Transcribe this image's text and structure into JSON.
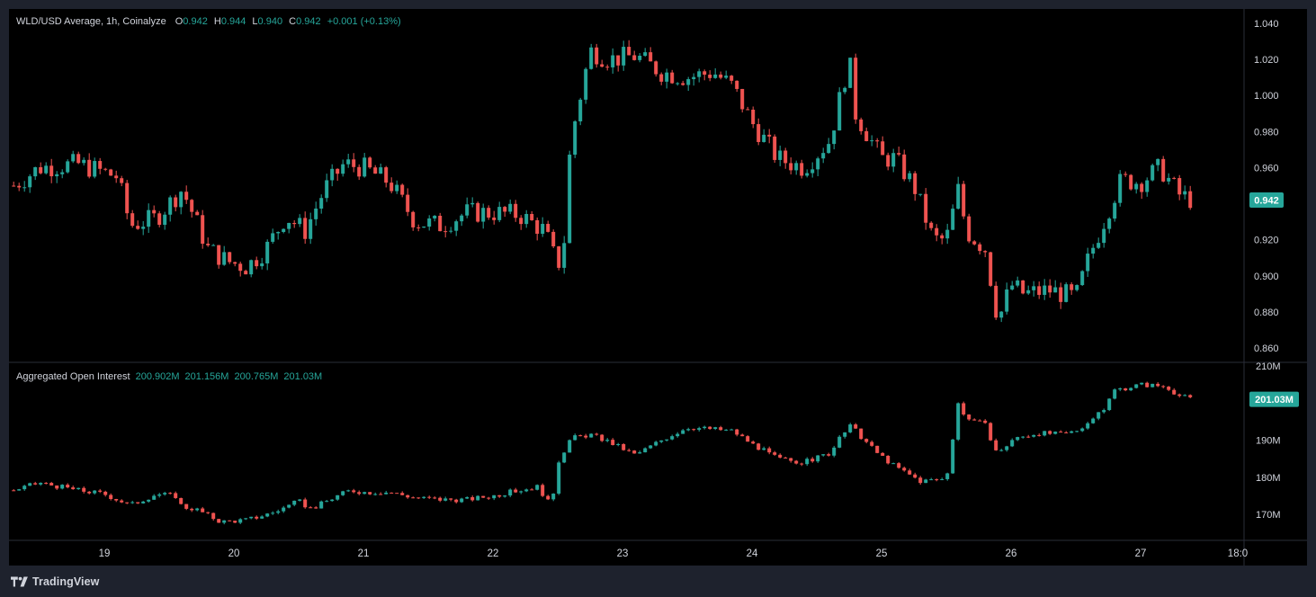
{
  "legend_main": {
    "symbol": "WLD/USD Average, 1h, Coinalyze",
    "o_label": "O",
    "o": "0.942",
    "h_label": "H",
    "h": "0.944",
    "l_label": "L",
    "l": "0.940",
    "c_label": "C",
    "c": "0.942",
    "change": "+0.001 (+0.13%)"
  },
  "legend_oi": {
    "title": "Aggregated Open Interest",
    "o": "200.902M",
    "h": "201.156M",
    "l": "200.765M",
    "c": "201.03M"
  },
  "footer": {
    "brand": "TradingView"
  },
  "colors": {
    "up": "#26a69a",
    "down": "#ef5350",
    "background": "#000000",
    "frame": "#1e222d",
    "text": "#d1d4dc",
    "grid_divider": "#2a2e39"
  },
  "chart_data": [
    {
      "type": "candlestick",
      "title": "WLD/USD Average, 1h, Coinalyze",
      "x_ticks": [
        "19",
        "20",
        "21",
        "22",
        "23",
        "24",
        "25",
        "26",
        "27",
        "18:0"
      ],
      "y_ticks": [
        "1.040",
        "1.020",
        "1.000",
        "0.980",
        "0.960",
        "0.940",
        "0.920",
        "0.900",
        "0.880",
        "0.860"
      ],
      "ylim": [
        0.852,
        1.048
      ],
      "last_price_label": "0.942",
      "close_path": {
        "x_days": [
          18.3,
          18.5,
          18.8,
          19.1,
          19.2,
          19.4,
          19.6,
          19.65,
          19.8,
          19.95,
          20.1,
          20.25,
          20.4,
          20.55,
          20.7,
          20.85,
          21.0,
          21.2,
          21.4,
          21.6,
          21.8,
          22.0,
          22.2,
          22.4,
          22.5,
          22.55,
          22.6,
          22.75,
          22.9,
          23.1,
          23.3,
          23.5,
          23.7,
          23.85,
          24.0,
          24.2,
          24.4,
          24.6,
          24.75,
          24.8,
          25.0,
          25.1,
          25.25,
          25.4,
          25.5,
          25.6,
          25.65,
          25.8,
          25.9,
          26.0,
          26.1,
          26.3,
          26.5,
          26.6,
          26.8,
          26.85,
          27.0,
          27.15,
          27.3,
          27.4
        ],
        "close": [
          0.95,
          0.96,
          0.962,
          0.955,
          0.928,
          0.932,
          0.948,
          0.94,
          0.915,
          0.908,
          0.905,
          0.915,
          0.933,
          0.925,
          0.948,
          0.962,
          0.96,
          0.952,
          0.93,
          0.928,
          0.935,
          0.935,
          0.934,
          0.925,
          0.905,
          0.92,
          0.975,
          1.025,
          1.02,
          1.022,
          1.013,
          1.01,
          1.013,
          1.005,
          0.985,
          0.965,
          0.96,
          0.975,
          1.02,
          0.99,
          0.965,
          0.965,
          0.95,
          0.92,
          0.92,
          0.95,
          0.925,
          0.915,
          0.875,
          0.895,
          0.89,
          0.892,
          0.888,
          0.91,
          0.945,
          0.953,
          0.952,
          0.96,
          0.945,
          0.942
        ]
      }
    },
    {
      "type": "candlestick",
      "title": "Aggregated Open Interest",
      "y_ticks": [
        "210M",
        "190M",
        "180M",
        "170M"
      ],
      "ylim": [
        163,
        211
      ],
      "last_value_label": "201.03M",
      "close_path": {
        "x_days": [
          18.3,
          18.5,
          18.8,
          19.0,
          19.2,
          19.4,
          19.55,
          19.6,
          19.7,
          19.9,
          20.1,
          20.3,
          20.5,
          20.6,
          20.8,
          20.9,
          21.0,
          21.2,
          21.4,
          21.6,
          21.8,
          22.0,
          22.2,
          22.35,
          22.45,
          22.5,
          22.6,
          22.75,
          22.9,
          23.1,
          23.3,
          23.5,
          23.7,
          23.85,
          24.0,
          24.2,
          24.4,
          24.6,
          24.75,
          24.8,
          24.95,
          25.1,
          25.3,
          25.5,
          25.6,
          25.62,
          25.8,
          25.9,
          26.0,
          26.2,
          26.4,
          26.5,
          26.6,
          26.7,
          26.8,
          27.0,
          27.2,
          27.3,
          27.4
        ],
        "close": [
          176.5,
          178.5,
          176.5,
          175.5,
          172.5,
          175.5,
          175.0,
          172.0,
          171.5,
          168.0,
          168.5,
          170.5,
          173.5,
          171.5,
          175.0,
          176.5,
          176.0,
          176.0,
          174.5,
          174.0,
          174.0,
          175.0,
          176.5,
          177.5,
          172.0,
          184.0,
          190.5,
          191.5,
          189.5,
          186.0,
          190.0,
          193.5,
          193.0,
          192.5,
          189.0,
          185.0,
          184.0,
          186.5,
          194.0,
          192.5,
          187.0,
          183.0,
          179.0,
          179.5,
          202.0,
          197.0,
          194.0,
          186.0,
          190.0,
          192.0,
          191.5,
          192.5,
          195.0,
          197.5,
          203.5,
          205.0,
          204.5,
          202.0,
          201.0
        ]
      }
    }
  ]
}
